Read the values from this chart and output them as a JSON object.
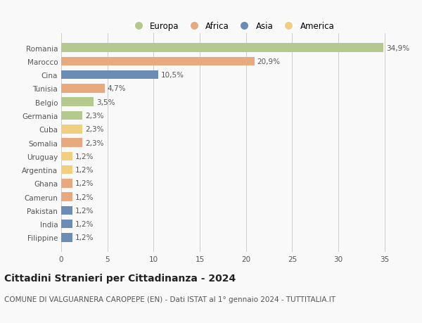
{
  "countries": [
    "Romania",
    "Marocco",
    "Cina",
    "Tunisia",
    "Belgio",
    "Germania",
    "Cuba",
    "Somalia",
    "Uruguay",
    "Argentina",
    "Ghana",
    "Camerun",
    "Pakistan",
    "India",
    "Filippine"
  ],
  "values": [
    34.9,
    20.9,
    10.5,
    4.7,
    3.5,
    2.3,
    2.3,
    2.3,
    1.2,
    1.2,
    1.2,
    1.2,
    1.2,
    1.2,
    1.2
  ],
  "labels": [
    "34,9%",
    "20,9%",
    "10,5%",
    "4,7%",
    "3,5%",
    "2,3%",
    "2,3%",
    "2,3%",
    "1,2%",
    "1,2%",
    "1,2%",
    "1,2%",
    "1,2%",
    "1,2%",
    "1,2%"
  ],
  "continents": [
    "Europa",
    "Africa",
    "Asia",
    "Africa",
    "Europa",
    "Europa",
    "America",
    "Africa",
    "America",
    "America",
    "Africa",
    "Africa",
    "Asia",
    "Asia",
    "Asia"
  ],
  "continent_colors": {
    "Europa": "#b5c98e",
    "Africa": "#e8a97e",
    "Asia": "#6b8db5",
    "America": "#f0d080"
  },
  "xlim": [
    0,
    37
  ],
  "xticks": [
    0,
    5,
    10,
    15,
    20,
    25,
    30,
    35
  ],
  "title": "Cittadini Stranieri per Cittadinanza - 2024",
  "subtitle": "COMUNE DI VALGUARNERA CAROPEPE (EN) - Dati ISTAT al 1° gennaio 2024 - TUTTITALIA.IT",
  "background_color": "#f9f9f9",
  "bar_height": 0.65,
  "grid_color": "#cccccc",
  "label_fontsize": 7.5,
  "ytick_fontsize": 7.5,
  "xtick_fontsize": 7.5,
  "title_fontsize": 10,
  "subtitle_fontsize": 7.5,
  "legend_fontsize": 8.5,
  "legend_order": [
    "Europa",
    "Africa",
    "Asia",
    "America"
  ]
}
